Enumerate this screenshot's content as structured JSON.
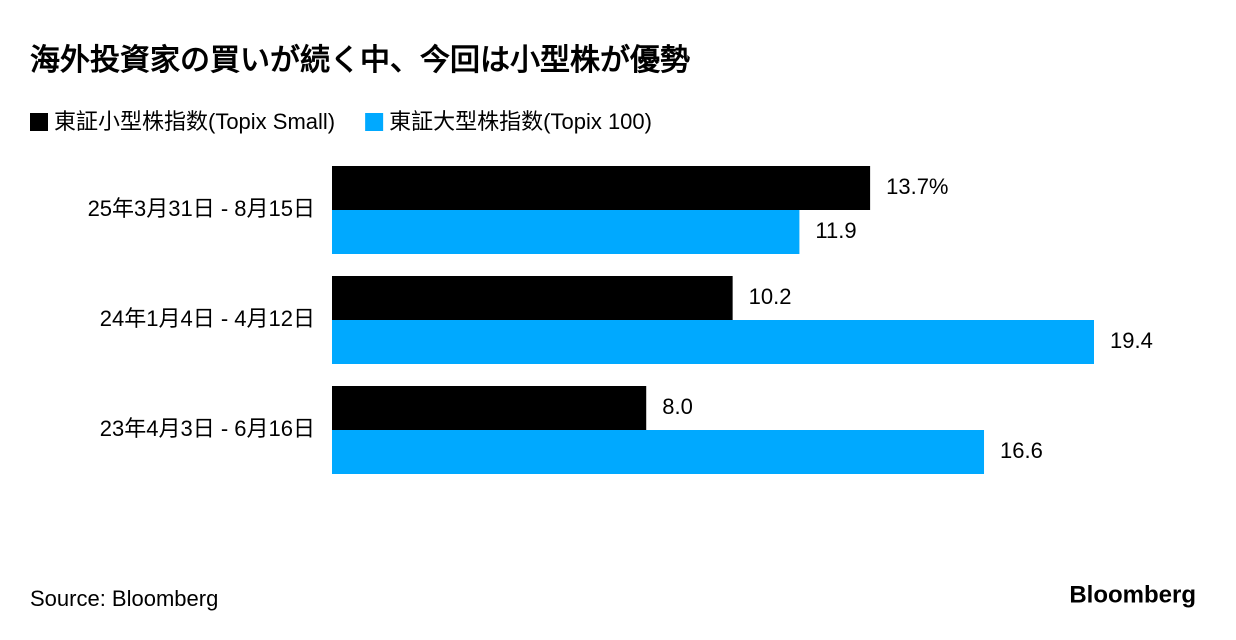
{
  "chart_data": {
    "type": "bar",
    "orientation": "horizontal",
    "title": "海外投資家の買いが続く中、今回は小型株が優勢",
    "categories": [
      "25年3月31日 - 8月15日",
      "24年1月4日 - 4月12日",
      "23年4月3日 - 6月16日"
    ],
    "series": [
      {
        "name": "東証小型株指数(Topix Small)",
        "color": "#000000",
        "values": [
          13.7,
          10.2,
          8.0
        ],
        "value_labels": [
          "13.7%",
          "10.2",
          "8.0"
        ]
      },
      {
        "name": "東証大型株指数(Topix 100)",
        "color": "#00a9ff",
        "values": [
          11.9,
          19.4,
          16.6
        ],
        "value_labels": [
          "11.9",
          "19.4",
          "16.6"
        ]
      }
    ],
    "grid": false,
    "source": "Source: Bloomberg",
    "brand": "Bloomberg"
  }
}
